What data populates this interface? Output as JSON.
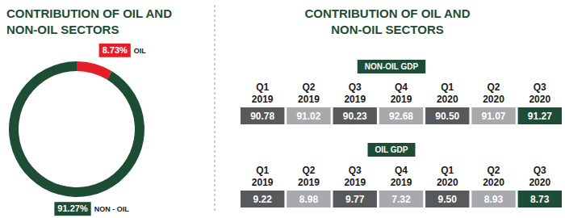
{
  "chart_data": [
    {
      "type": "pie",
      "title": "CONTRIBUTION OF OIL AND NON-OIL SECTORS",
      "categories": [
        "OIL",
        "NON - OIL"
      ],
      "values": [
        8.73,
        91.27
      ],
      "value_labels": [
        "8.73%",
        "91.27%"
      ],
      "colors": [
        "#e31e26",
        "#1e4d35"
      ],
      "data_labels": true
    },
    {
      "type": "table",
      "title": "CONTRIBUTION OF OIL AND NON-OIL SECTORS",
      "subtitle": "NON-OIL GDP",
      "categories": [
        "Q1 2019",
        "Q2 2019",
        "Q3 2019",
        "Q4 2019",
        "Q1 2020",
        "Q2 2020",
        "Q3 2020"
      ],
      "values": [
        90.78,
        91.02,
        90.23,
        92.68,
        90.5,
        91.07,
        91.27
      ],
      "value_labels": [
        "90.78",
        "91.02",
        "90.23",
        "92.68",
        "90.50",
        "91.07",
        "91.27"
      ],
      "colors": [
        "#58595b",
        "#a7a9ac",
        "#58595b",
        "#a7a9ac",
        "#58595b",
        "#a7a9ac",
        "#1e4d35"
      ],
      "data_labels": true
    },
    {
      "type": "table",
      "subtitle": "OIL GDP",
      "categories": [
        "Q1 2019",
        "Q2 2019",
        "Q3 2019",
        "Q4 2019",
        "Q1 2020",
        "Q2 2020",
        "Q3 2020"
      ],
      "values": [
        9.22,
        8.98,
        9.77,
        7.32,
        9.5,
        8.93,
        8.73
      ],
      "value_labels": [
        "9.22",
        "8.98",
        "9.77",
        "7.32",
        "9.50",
        "8.93",
        "8.73"
      ],
      "colors": [
        "#58595b",
        "#a7a9ac",
        "#58595b",
        "#a7a9ac",
        "#58595b",
        "#a7a9ac",
        "#1e4d35"
      ],
      "data_labels": true
    }
  ]
}
